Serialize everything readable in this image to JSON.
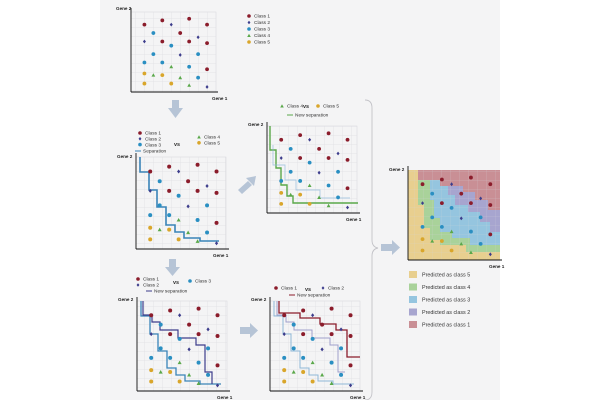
{
  "axes": {
    "x_label": "Gene 1",
    "y_label": "Gene 2"
  },
  "vs_label": "vs",
  "classes": [
    {
      "id": 1,
      "name": "Class 1",
      "color": "#8b1c2b",
      "shape": "circle"
    },
    {
      "id": 2,
      "name": "Class 2",
      "color": "#3d3d8c",
      "shape": "diamond"
    },
    {
      "id": 3,
      "name": "Class 3",
      "color": "#2a8fc2",
      "shape": "circle"
    },
    {
      "id": 4,
      "name": "Class 4",
      "color": "#5aa84a",
      "shape": "triangle"
    },
    {
      "id": 5,
      "name": "Class 5",
      "color": "#d9a62b",
      "shape": "circle"
    }
  ],
  "panels": {
    "initial": {
      "legend": [
        "Class 1",
        "Class 2",
        "Class 3",
        "Class 4",
        "Class 5"
      ]
    },
    "step_class_3": {
      "left_legend": [
        "Class 1",
        "Class 2",
        "Class 3"
      ],
      "right_legend": [
        "Class 4",
        "Class 5"
      ],
      "line_label": "Separation"
    },
    "step_class_4": {
      "left_legend": [
        "Class 4"
      ],
      "right_legend": [
        "Class 5"
      ],
      "line_label": "New separation"
    },
    "step_class_3b": {
      "left_legend": [
        "Class 1",
        "Class 2"
      ],
      "right_legend": [
        "Class 3"
      ],
      "line_label": "New separation"
    },
    "step_class_1": {
      "left_legend": [
        "Class 1"
      ],
      "right_legend": [
        "Class 2"
      ],
      "line_label": "New separation"
    }
  },
  "predictions": [
    {
      "label": "Predicted as class 5",
      "color": "#e8cf8f"
    },
    {
      "label": "Predicted as class 4",
      "color": "#a9d29a"
    },
    {
      "label": "Predicted as class 3",
      "color": "#95c5df"
    },
    {
      "label": "Predicted as class 2",
      "color": "#a7a5cf"
    },
    {
      "label": "Predicted as class 1",
      "color": "#c98f95"
    }
  ]
}
